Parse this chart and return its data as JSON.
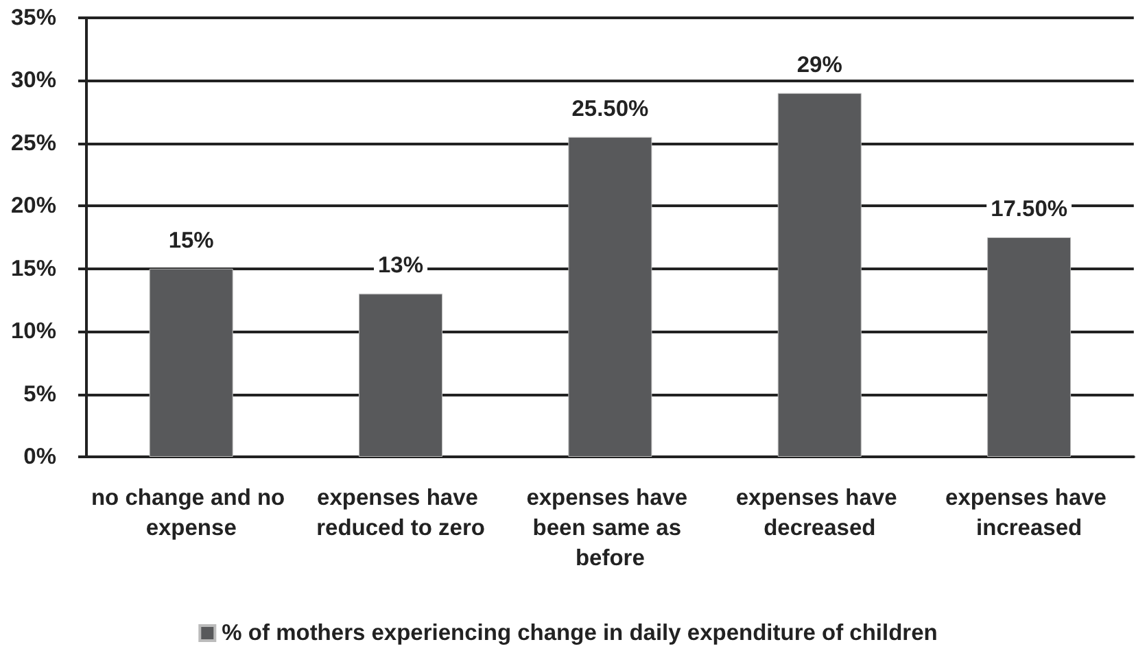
{
  "chart_data": {
    "type": "bar",
    "categories": [
      "no change and no expense",
      "expenses have reduced to zero",
      "expenses have been same as before",
      "expenses have decreased",
      "expenses have increased"
    ],
    "series": [
      {
        "name": "% of mothers experiencing change in daily expenditure of children",
        "color": "#58595b",
        "values": [
          15,
          13,
          25.5,
          29,
          17.5
        ],
        "value_labels": [
          "15%",
          "13%",
          "25.50%",
          "29%",
          "17.50%"
        ]
      }
    ],
    "ylim": [
      0,
      35
    ],
    "yticks": [
      {
        "value": 0,
        "label": "0%"
      },
      {
        "value": 5,
        "label": "5%"
      },
      {
        "value": 10,
        "label": "10%"
      },
      {
        "value": 15,
        "label": "15%"
      },
      {
        "value": 20,
        "label": "20%"
      },
      {
        "value": 25,
        "label": "25%"
      },
      {
        "value": 30,
        "label": "30%"
      },
      {
        "value": 35,
        "label": "35%"
      }
    ],
    "grid": "y",
    "legend": "bottom"
  }
}
